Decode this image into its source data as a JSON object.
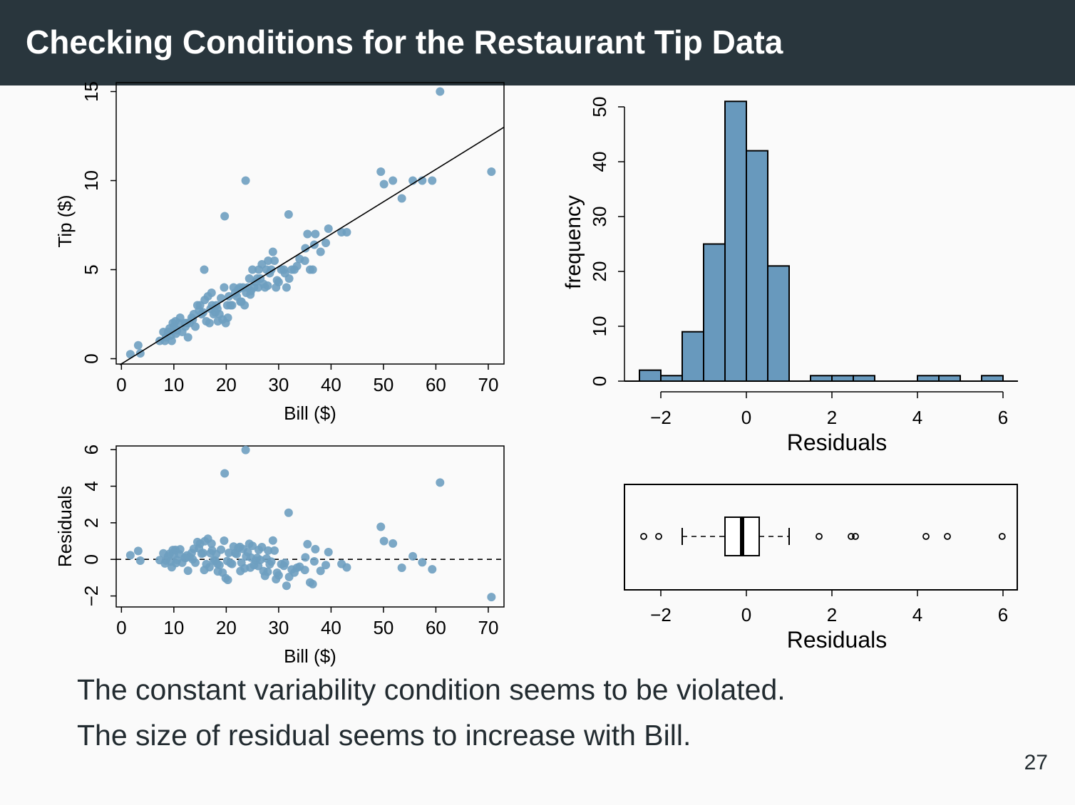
{
  "title": "Checking Conditions for the Restaurant Tip Data",
  "captions": [
    "The constant variability condition seems to be violated.",
    "The size of residual seems to increase with Bill."
  ],
  "page_number": "27",
  "colors": {
    "header_bg": "#29363d",
    "point": "#6e9ec0",
    "bar": "#6899bd",
    "text": "#222b30"
  },
  "chart_data": [
    {
      "type": "scatter",
      "xlabel": "Bill ($)",
      "ylabel": "Tip ($)",
      "xlim": [
        -1,
        73
      ],
      "ylim": [
        -0.3,
        15.5
      ],
      "x_ticks": [
        0,
        10,
        20,
        30,
        40,
        50,
        60,
        70
      ],
      "y_ticks": [
        0,
        5,
        10,
        15
      ],
      "regression_line": {
        "intercept": -0.29,
        "slope": 0.182
      },
      "x": [
        1.7,
        3.2,
        3.6,
        7.3,
        8.0,
        8.3,
        8.5,
        8.9,
        9.2,
        9.6,
        9.8,
        10.0,
        10.3,
        10.6,
        11.0,
        11.2,
        11.6,
        12.2,
        12.5,
        12.7,
        13.0,
        13.4,
        13.8,
        14.1,
        14.5,
        14.8,
        15.0,
        15.3,
        15.6,
        15.9,
        16.2,
        16.5,
        16.8,
        17.0,
        17.3,
        17.6,
        17.9,
        18.1,
        18.4,
        18.7,
        19.0,
        19.3,
        19.6,
        19.9,
        20.2,
        20.5,
        20.8,
        21.1,
        21.4,
        21.7,
        22.0,
        22.3,
        22.6,
        22.9,
        23.2,
        23.5,
        23.8,
        24.1,
        24.4,
        24.7,
        25.0,
        25.3,
        25.6,
        25.9,
        26.2,
        26.5,
        26.8,
        27.1,
        27.4,
        27.7,
        28.0,
        28.3,
        28.6,
        28.9,
        29.2,
        29.5,
        30.0,
        30.5,
        31.0,
        31.5,
        32.0,
        32.5,
        33.0,
        34.0,
        35.0,
        35.5,
        36.0,
        36.5,
        37.0,
        38.0,
        39.0,
        39.5,
        42.0,
        43.0,
        15.8,
        19.7,
        23.7,
        31.9,
        49.5,
        50.1,
        51.8,
        53.5,
        55.6,
        57.4,
        59.3,
        60.8,
        70.6,
        9.4,
        10.4,
        12.1,
        13.6,
        17.2,
        18.3,
        20.3,
        22.7,
        24.6,
        26.1,
        27.9,
        29.7,
        31.2,
        33.5,
        35.1,
        36.8
      ],
      "y": [
        0.25,
        0.75,
        0.3,
        1.0,
        1.5,
        1.0,
        1.2,
        1.5,
        1.7,
        1.0,
        2.0,
        1.8,
        2.1,
        1.6,
        2.0,
        2.3,
        1.5,
        1.8,
        2.0,
        1.2,
        2.0,
        2.3,
        2.5,
        1.8,
        3.0,
        2.7,
        3.0,
        2.5,
        2.6,
        3.3,
        2.1,
        3.5,
        2.0,
        2.8,
        3.0,
        2.5,
        2.6,
        3.0,
        2.1,
        2.5,
        3.4,
        2.2,
        4.0,
        2.0,
        3.0,
        3.5,
        3.0,
        3.0,
        4.0,
        3.7,
        3.5,
        3.9,
        4.0,
        3.2,
        4.0,
        3.0,
        3.7,
        4.0,
        4.5,
        3.8,
        5.0,
        4.0,
        4.3,
        4.5,
        5.0,
        4.5,
        5.3,
        4.2,
        4.0,
        5.0,
        5.5,
        4.8,
        5.0,
        6.0,
        5.5,
        4.0,
        4.3,
        5.0,
        5.0,
        4.0,
        4.5,
        5.0,
        5.0,
        5.6,
        5.5,
        7.0,
        5.0,
        5.0,
        7.0,
        6.0,
        6.5,
        7.3,
        7.1,
        7.1,
        5.0,
        8.0,
        10.0,
        8.1,
        10.5,
        9.8,
        10.0,
        9.0,
        10.0,
        10.0,
        10.0,
        15.0,
        10.5,
        1.3,
        1.4,
        2.0,
        2.2,
        3.7,
        2.8,
        2.3,
        3.2,
        3.6,
        4.0,
        4.1,
        4.4,
        4.8,
        5.2,
        6.2,
        6.4
      ]
    },
    {
      "type": "bar",
      "subtype": "histogram",
      "xlabel": "Residuals",
      "ylabel": "frequency",
      "bin_edges": [
        -2.5,
        -2.0,
        -1.5,
        -1.0,
        -0.5,
        0.0,
        0.5,
        1.0,
        1.5,
        2.0,
        2.5,
        3.0,
        3.5,
        4.0,
        4.5,
        5.0,
        5.5,
        6.0
      ],
      "values": [
        2,
        1,
        9,
        25,
        51,
        42,
        21,
        0,
        1,
        1,
        1,
        0,
        0,
        1,
        1,
        0,
        1
      ],
      "xlim": [
        -2.5,
        6.0
      ],
      "ylim": [
        0,
        50
      ],
      "x_ticks": [
        -2,
        0,
        2,
        4,
        6
      ],
      "y_ticks": [
        0,
        10,
        20,
        30,
        40,
        50
      ]
    },
    {
      "type": "scatter",
      "xlabel": "Bill ($)",
      "ylabel": "Residuals",
      "xlim": [
        -1,
        73
      ],
      "ylim": [
        -2.6,
        6.2
      ],
      "x_ticks": [
        0,
        10,
        20,
        30,
        40,
        50,
        60,
        70
      ],
      "y_ticks": [
        -2,
        0,
        2,
        4,
        6
      ],
      "reference_line": 0,
      "x": [
        1.7,
        3.2,
        3.6,
        7.3,
        8.0,
        8.3,
        8.5,
        8.9,
        9.2,
        9.6,
        9.8,
        10.0,
        10.3,
        10.6,
        11.0,
        11.2,
        11.6,
        12.2,
        12.5,
        12.7,
        13.0,
        13.4,
        13.8,
        14.1,
        14.5,
        14.8,
        15.0,
        15.3,
        15.6,
        15.9,
        16.2,
        16.5,
        16.8,
        17.0,
        17.3,
        17.6,
        17.9,
        18.1,
        18.4,
        18.7,
        19.0,
        19.3,
        19.6,
        19.9,
        20.2,
        20.5,
        20.8,
        21.1,
        21.4,
        21.7,
        22.0,
        22.3,
        22.6,
        22.9,
        23.2,
        23.5,
        23.8,
        24.1,
        24.4,
        24.7,
        25.0,
        25.3,
        25.6,
        25.9,
        26.2,
        26.5,
        26.8,
        27.1,
        27.4,
        27.7,
        28.0,
        28.3,
        28.6,
        28.9,
        29.2,
        29.5,
        30.0,
        30.5,
        31.0,
        31.5,
        32.0,
        32.5,
        33.0,
        34.0,
        35.0,
        35.5,
        36.0,
        36.5,
        37.0,
        38.0,
        39.0,
        39.5,
        42.0,
        43.0,
        15.8,
        19.7,
        23.7,
        31.9,
        49.5,
        50.1,
        51.8,
        53.5,
        55.6,
        57.4,
        59.3,
        60.8,
        70.6,
        9.4,
        10.4,
        12.1,
        13.6,
        17.2,
        18.3,
        20.3,
        22.7,
        24.6,
        26.1,
        27.9,
        29.7,
        31.2,
        33.5,
        35.1,
        36.8
      ],
      "y": [
        0.23,
        0.46,
        -0.07,
        -0.04,
        0.33,
        -0.22,
        -0.06,
        0.17,
        0.31,
        -0.43,
        0.51,
        0.27,
        0.52,
        -0.04,
        0.29,
        0.55,
        -0.18,
        0.07,
        0.22,
        -0.62,
        0.13,
        0.35,
        0.58,
        -0.18,
        0.95,
        0.6,
        0.86,
        0.31,
        0.35,
        0.99,
        -0.26,
        1.13,
        -0.43,
        0.34,
        0.49,
        -0.07,
        -0.07,
        0.29,
        -0.66,
        -0.31,
        0.53,
        -0.72,
        1.02,
        -1.03,
        -0.09,
        0.36,
        -0.2,
        -0.25,
        0.7,
        0.34,
        0.29,
        0.63,
        0.68,
        -0.18,
        0.57,
        -0.49,
        0.16,
        0.4,
        0.85,
        0.1,
        0.74,
        -0.31,
        -0.07,
        0.08,
        0.52,
        -0.03,
        0.67,
        -0.64,
        -0.9,
        0.05,
        0.48,
        -0.27,
        -0.12,
        1.03,
        0.48,
        -1.08,
        -0.87,
        -0.26,
        -0.35,
        -1.44,
        -0.96,
        -0.55,
        -0.72,
        -0.4,
        -0.58,
        0.83,
        -1.26,
        -1.35,
        0.56,
        -0.63,
        -0.31,
        0.4,
        -0.25,
        -0.44,
        -0.58,
        4.7,
        5.98,
        2.55,
        1.78,
        1.0,
        0.87,
        -0.46,
        0.17,
        -0.16,
        -0.54,
        4.2,
        -2.06,
        -0.12,
        -0.2,
        0.09,
        -0.0,
        0.86,
        -0.24,
        -1.12,
        -0.64,
        -0.45,
        -0.36,
        -0.68,
        -0.73,
        -0.19,
        -0.46,
        0.11,
        -0.11
      ]
    },
    {
      "type": "box",
      "xlabel": "Residuals",
      "xlim": [
        -2.5,
        6.0
      ],
      "x_ticks": [
        -2,
        0,
        2,
        4,
        6
      ],
      "whisker_low": -1.5,
      "q1": -0.5,
      "median": -0.1,
      "q3": 0.3,
      "whisker_high": 1.0,
      "outliers": [
        -2.4,
        -2.05,
        1.7,
        2.45,
        2.55,
        4.2,
        4.7,
        5.98
      ]
    }
  ]
}
